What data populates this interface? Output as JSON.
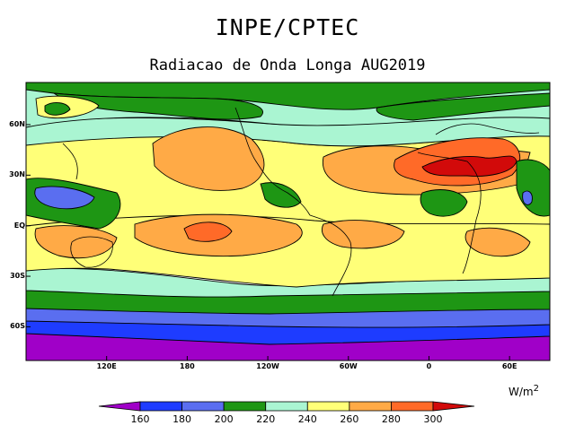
{
  "header": {
    "org": "INPE/CPTEC",
    "title": "Radiacao de Onda Longa AUG2019"
  },
  "axes": {
    "lat_ticks": [
      {
        "label": "60N",
        "value": 60
      },
      {
        "label": "30N",
        "value": 30
      },
      {
        "label": "EQ",
        "value": 0
      },
      {
        "label": "30S",
        "value": -30
      },
      {
        "label": "60S",
        "value": -60
      }
    ],
    "lon_ticks": [
      {
        "label": "120E",
        "value": 120
      },
      {
        "label": "180",
        "value": 180
      },
      {
        "label": "120W",
        "value": 240
      },
      {
        "label": "60W",
        "value": 300
      },
      {
        "label": "0",
        "value": 360
      },
      {
        "label": "60E",
        "value": 420
      }
    ],
    "lon_range": [
      60,
      450
    ],
    "lat_range": [
      -80,
      85
    ]
  },
  "colorbar": {
    "units": "W/m",
    "units_exp": "2",
    "levels": [
      "160",
      "180",
      "200",
      "220",
      "240",
      "260",
      "280",
      "300"
    ],
    "colors": [
      "#a000c8",
      "#1e3cff",
      "#5a6ef0",
      "#1e9614",
      "#aaf5d2",
      "#ffff78",
      "#ffaa46",
      "#ff6a28",
      "#d20a0a"
    ]
  }
}
